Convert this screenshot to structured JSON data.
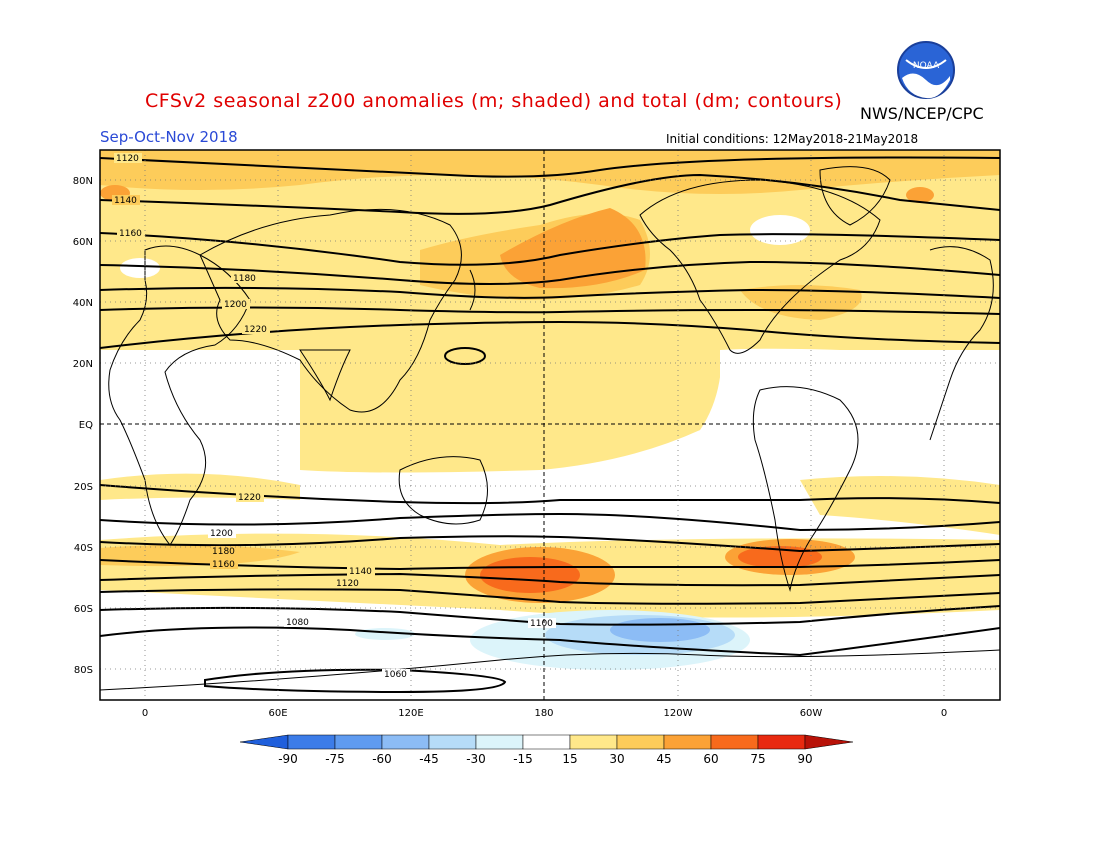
{
  "header": {
    "title": "CFSv2 seasonal z200 anomalies (m; shaded) and total (dm; contours)",
    "agency": "NWS/NCEP/CPC",
    "season": "Sep-Oct-Nov 2018",
    "init": "Initial conditions: 12May2018-21May2018",
    "logo_text": "NOAA"
  },
  "map": {
    "lat_labels": [
      "80N",
      "60N",
      "40N",
      "20N",
      "EQ",
      "20S",
      "40S",
      "60S",
      "80S"
    ],
    "lon_labels": [
      "0",
      "60E",
      "120E",
      "180",
      "120W",
      "60W",
      "0"
    ],
    "contour_labels": [
      "1120",
      "1140",
      "1160",
      "1180",
      "1200",
      "1220",
      "1220",
      "1200",
      "1180",
      "1160",
      "1140",
      "1120",
      "1100",
      "1080",
      "1060"
    ]
  },
  "colorbar": {
    "ticks": [
      "-90",
      "-75",
      "-60",
      "-45",
      "-30",
      "-15",
      "15",
      "30",
      "45",
      "60",
      "75",
      "90"
    ],
    "colors": [
      "#1f5fdc",
      "#3c7ce8",
      "#5f9bf0",
      "#8cbcf5",
      "#b6dcf8",
      "#dcf4fa",
      "#ffffff",
      "#ffe88a",
      "#fdcc5a",
      "#fba236",
      "#f86a1c",
      "#e82a10",
      "#b81208"
    ]
  }
}
